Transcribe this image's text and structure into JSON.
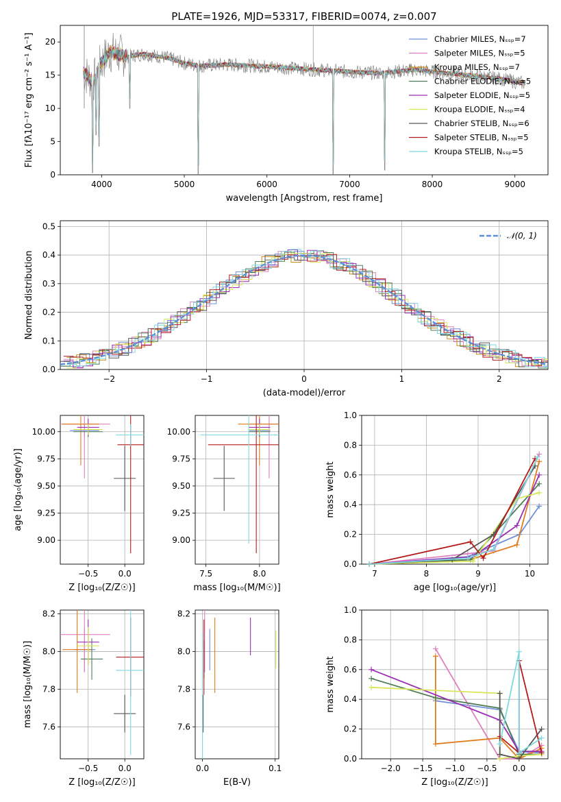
{
  "colors": {
    "grid": "#b0b0b0",
    "chabrier_miles": "#6f8fd8",
    "salpeter_miles": "#e07fbf",
    "kroupa_miles": "#c98a14",
    "chabrier_elodie": "#4e7d55",
    "salpeter_elodie": "#9b2fb3",
    "kroupa_elodie": "#d8e65a",
    "chabrier_stelib": "#555555",
    "salpeter_stelib": "#b31a1a",
    "kroupa_stelib": "#7fd8e0",
    "orange": "#e07b1a",
    "normal_curve": "#5b8fd9"
  },
  "chart_data": [
    {
      "id": "spectrum",
      "type": "line",
      "title": "PLATE=1926, MJD=53317, FIBERID=0074, z=0.007",
      "xlabel": "wavelength [Angstrom, rest frame]",
      "ylabel": "Flux [fλ10⁻¹⁷ erg cm⁻² s⁻¹ A⁻¹]",
      "xlim": [
        3500,
        9400
      ],
      "ylim": [
        0,
        22.5
      ],
      "xticks": [
        "4000",
        "5000",
        "6000",
        "7000",
        "8000",
        "9000"
      ],
      "yticks": [
        "0",
        "5",
        "10",
        "15",
        "20"
      ],
      "grid": false,
      "legend_position": "top-right",
      "legend": [
        "Chabrier MILES, Nₛₛₚ=7",
        "Salpeter MILES, Nₛₛₚ=5",
        "Kroupa MILES, Nₛₛₚ=7",
        "Chabrier ELODIE, Nₛₛₚ=5",
        "Salpeter ELODIE, Nₛₛₚ=5",
        "Kroupa ELODIE, Nₛₛₚ=4",
        "Chabrier STELIB, Nₛₛₚ=6",
        "Salpeter STELIB, Nₛₛₚ=5",
        "Kroupa STELIB, Nₛₛₚ=5"
      ],
      "continuum": [
        [
          3780,
          15.5
        ],
        [
          3900,
          14
        ],
        [
          4000,
          17
        ],
        [
          4100,
          18.5
        ],
        [
          4300,
          17.8
        ],
        [
          4500,
          18.2
        ],
        [
          4800,
          17.6
        ],
        [
          5000,
          16.8
        ],
        [
          5200,
          16.4
        ],
        [
          5500,
          16.6
        ],
        [
          6000,
          16.3
        ],
        [
          6500,
          15.9
        ],
        [
          7000,
          15.5
        ],
        [
          7400,
          15.3
        ],
        [
          7600,
          15.6
        ],
        [
          7800,
          15.8
        ],
        [
          8100,
          15.4
        ],
        [
          8500,
          14.9
        ],
        [
          8800,
          14.5
        ],
        [
          9100,
          13.8
        ]
      ],
      "dips": [
        [
          3890,
          0.3
        ],
        [
          3935,
          6.0
        ],
        [
          3970,
          4.3
        ],
        [
          4340,
          10
        ],
        [
          5170,
          0
        ],
        [
          6800,
          0
        ],
        [
          7425,
          0.7
        ]
      ]
    },
    {
      "id": "residuals",
      "type": "line",
      "xlabel": "(data-model)/error",
      "ylabel": "Normed distribution",
      "xlim": [
        -2.5,
        2.5
      ],
      "ylim": [
        0,
        0.52
      ],
      "xticks": [
        "−2",
        "−1",
        "0",
        "1",
        "2"
      ],
      "yticks": [
        "0.0",
        "0.1",
        "0.2",
        "0.3",
        "0.4",
        "0.5"
      ],
      "grid": true,
      "legend_position": "top-right",
      "legend": [
        "𝒩(0, 1)"
      ],
      "series": [
        {
          "name": "𝒩(0, 1)",
          "function": "standard normal pdf"
        }
      ]
    },
    {
      "id": "age_vs_Z",
      "type": "scatter",
      "xlabel": "Z [log₁₀(Z/Z☉)]",
      "ylabel": "age  [log₁₀(age/yr)]",
      "xlim": [
        -0.88,
        0.26
      ],
      "ylim": [
        8.78,
        10.15
      ],
      "xticks": [
        "−0.5",
        "0.0"
      ],
      "yticks": [
        "9.00",
        "9.25",
        "9.50",
        "9.75",
        "10.00"
      ],
      "grid": true,
      "points": [
        {
          "x": -0.55,
          "y": 10.01,
          "xerr": 0.2,
          "yerr": 0.06,
          "color": "chabrier_miles"
        },
        {
          "x": -0.55,
          "y": 10.07,
          "xerr": 0.35,
          "yerr": 0.5,
          "color": "salpeter_miles"
        },
        {
          "x": -0.6,
          "y": 10.07,
          "xerr": 0.25,
          "yerr": 0.38,
          "color": "orange"
        },
        {
          "x": -0.5,
          "y": 10.0,
          "xerr": 0.2,
          "yerr": 0.05,
          "color": "chabrier_elodie"
        },
        {
          "x": -0.5,
          "y": 10.04,
          "xerr": 0.15,
          "yerr": 0.08,
          "color": "salpeter_elodie"
        },
        {
          "x": -0.5,
          "y": 10.02,
          "xerr": 0.2,
          "yerr": 0.05,
          "color": "kroupa_elodie"
        },
        {
          "x": 0.0,
          "y": 9.57,
          "xerr": 0.15,
          "yerr": 0.3,
          "color": "chabrier_stelib"
        },
        {
          "x": 0.08,
          "y": 9.88,
          "xerr": 0.18,
          "yerr": 1.0,
          "color": "salpeter_stelib"
        },
        {
          "x": 0.08,
          "y": 9.97,
          "xerr": 0.2,
          "yerr": 0.1,
          "color": "kroupa_stelib"
        }
      ]
    },
    {
      "id": "age_vs_mass",
      "type": "scatter",
      "xlabel": "mass [log₁₀(M/M☉)]",
      "ylabel": "",
      "xlim": [
        7.4,
        8.18
      ],
      "ylim": [
        8.78,
        10.15
      ],
      "xticks": [
        "7.5",
        "8.0"
      ],
      "yticks": [
        "9.00",
        "9.25",
        "9.50",
        "9.75",
        "10.00"
      ],
      "grid": true,
      "points": [
        {
          "x": 8.0,
          "y": 10.01,
          "xerr": 0.1,
          "yerr": 0.06,
          "color": "chabrier_miles"
        },
        {
          "x": 8.09,
          "y": 10.07,
          "xerr": 0.2,
          "yerr": 0.5,
          "color": "salpeter_miles"
        },
        {
          "x": 8.0,
          "y": 10.07,
          "xerr": 0.2,
          "yerr": 0.38,
          "color": "orange"
        },
        {
          "x": 8.0,
          "y": 10.0,
          "xerr": 0.1,
          "yerr": 0.05,
          "color": "chabrier_elodie"
        },
        {
          "x": 8.0,
          "y": 10.04,
          "xerr": 0.1,
          "yerr": 0.08,
          "color": "salpeter_elodie"
        },
        {
          "x": 8.0,
          "y": 10.02,
          "xerr": 0.1,
          "yerr": 0.05,
          "color": "kroupa_elodie"
        },
        {
          "x": 7.67,
          "y": 9.57,
          "xerr": 0.1,
          "yerr": 0.3,
          "color": "chabrier_stelib"
        },
        {
          "x": 7.97,
          "y": 9.88,
          "xerr": 0.45,
          "yerr": 1.0,
          "color": "salpeter_stelib"
        },
        {
          "x": 7.9,
          "y": 9.97,
          "xerr": 0.45,
          "yerr": 1.0,
          "color": "kroupa_stelib"
        }
      ]
    },
    {
      "id": "weight_vs_age",
      "type": "line",
      "xlabel": "age  [log₁₀(age/yr)]",
      "ylabel": "mass weight",
      "xlim": [
        6.75,
        10.35
      ],
      "ylim": [
        0,
        1.0
      ],
      "xticks": [
        "7",
        "8",
        "9",
        "10"
      ],
      "yticks": [
        "0.0",
        "0.2",
        "0.4",
        "0.6",
        "0.8",
        "1.0"
      ],
      "grid": true,
      "series": [
        {
          "color": "chabrier_miles",
          "x": [
            6.9,
            8.8,
            9.8,
            10.18
          ],
          "y": [
            0.0,
            0.05,
            0.2,
            0.39
          ]
        },
        {
          "color": "salpeter_miles",
          "x": [
            6.9,
            8.8,
            9.3,
            10.18
          ],
          "y": [
            0.0,
            0.07,
            0.09,
            0.74
          ]
        },
        {
          "color": "orange",
          "x": [
            6.9,
            8.85,
            9.75,
            10.18
          ],
          "y": [
            0.0,
            0.03,
            0.13,
            0.69
          ]
        },
        {
          "color": "chabrier_elodie",
          "x": [
            6.9,
            8.85,
            9.3,
            10.18
          ],
          "y": [
            0.0,
            0.03,
            0.2,
            0.54
          ]
        },
        {
          "color": "salpeter_elodie",
          "x": [
            6.9,
            8.9,
            9.75,
            10.18
          ],
          "y": [
            0.0,
            0.05,
            0.26,
            0.6
          ]
        },
        {
          "color": "kroupa_elodie",
          "x": [
            6.9,
            8.9,
            9.75,
            10.18
          ],
          "y": [
            0.0,
            0.02,
            0.44,
            0.48
          ]
        },
        {
          "color": "chabrier_stelib",
          "x": [
            6.9,
            8.5,
            9.3,
            10.1
          ],
          "y": [
            0.0,
            0.03,
            0.2,
            0.66
          ]
        },
        {
          "color": "salpeter_stelib",
          "x": [
            6.9,
            8.85,
            9.1,
            10.1
          ],
          "y": [
            0.0,
            0.15,
            0.04,
            0.71
          ]
        },
        {
          "color": "kroupa_stelib",
          "x": [
            6.9,
            8.8,
            9.3,
            10.15
          ],
          "y": [
            0.0,
            0.04,
            0.1,
            0.72
          ]
        }
      ]
    },
    {
      "id": "mass_vs_Z",
      "type": "scatter",
      "xlabel": "Z [log₁₀(Z/Z☉)]",
      "ylabel": "mass [log₁₀(M/M☉)]",
      "xlim": [
        -0.88,
        0.26
      ],
      "ylim": [
        7.43,
        8.22
      ],
      "xticks": [
        "−0.5",
        "0.0"
      ],
      "yticks": [
        "7.6",
        "7.8",
        "8.0",
        "8.2"
      ],
      "grid": true,
      "points": [
        {
          "x": -0.55,
          "y": 8.01,
          "xerr": 0.15,
          "yerr": 0.12,
          "color": "chabrier_miles"
        },
        {
          "x": -0.55,
          "y": 8.09,
          "xerr": 0.35,
          "yerr": 0.2,
          "color": "salpeter_miles"
        },
        {
          "x": -0.65,
          "y": 8.01,
          "xerr": 0.2,
          "yerr": 0.23,
          "color": "orange"
        },
        {
          "x": -0.45,
          "y": 7.96,
          "xerr": 0.15,
          "yerr": 0.11,
          "color": "chabrier_elodie"
        },
        {
          "x": -0.5,
          "y": 8.05,
          "xerr": 0.15,
          "yerr": 0.12,
          "color": "salpeter_elodie"
        },
        {
          "x": -0.5,
          "y": 8.03,
          "xerr": 0.15,
          "yerr": 0.1,
          "color": "kroupa_elodie"
        },
        {
          "x": 0.0,
          "y": 7.67,
          "xerr": 0.15,
          "yerr": 0.1,
          "color": "chabrier_stelib"
        },
        {
          "x": 0.08,
          "y": 7.97,
          "xerr": 0.2,
          "yerr": 0.21,
          "color": "salpeter_stelib"
        },
        {
          "x": 0.08,
          "y": 7.9,
          "xerr": 0.2,
          "yerr": 0.45,
          "color": "kroupa_stelib"
        }
      ]
    },
    {
      "id": "mass_vs_ebv",
      "type": "scatter",
      "xlabel": "E(B-V)",
      "ylabel": "",
      "xlim": [
        -0.01,
        0.105
      ],
      "ylim": [
        7.43,
        8.22
      ],
      "xticks": [
        "0.0",
        "0.1"
      ],
      "yticks": [
        "7.6",
        "7.8",
        "8.0",
        "8.2"
      ],
      "grid": true,
      "points": [
        {
          "x": 0.01,
          "y": 8.01,
          "yerr": 0.11,
          "color": "chabrier_miles"
        },
        {
          "x": 0.003,
          "y": 8.09,
          "yerr": 0.2,
          "color": "salpeter_miles"
        },
        {
          "x": 0.017,
          "y": 7.98,
          "yerr": 0.2,
          "color": "orange"
        },
        {
          "x": 0.002,
          "y": 7.96,
          "yerr": 0.1,
          "color": "chabrier_elodie"
        },
        {
          "x": 0.066,
          "y": 8.08,
          "yerr": 0.1,
          "color": "salpeter_elodie"
        },
        {
          "x": 0.101,
          "y": 8.01,
          "yerr": 0.1,
          "color": "kroupa_elodie"
        },
        {
          "x": 0.001,
          "y": 7.67,
          "yerr": 0.1,
          "color": "chabrier_stelib"
        },
        {
          "x": 0.002,
          "y": 7.97,
          "yerr": 0.2,
          "color": "salpeter_stelib"
        },
        {
          "x": 0.0,
          "y": 7.65,
          "yerr": 0.45,
          "color": "kroupa_stelib"
        }
      ]
    },
    {
      "id": "weight_vs_Z",
      "type": "line",
      "xlabel": "Z [log₁₀(Z/Z☉)]",
      "ylabel": "mass weight",
      "xlim": [
        -2.45,
        0.45
      ],
      "ylim": [
        0,
        1.0
      ],
      "xticks": [
        "−2.0",
        "−1.5",
        "−1.0",
        "−0.5",
        "0.0"
      ],
      "yticks": [
        "0.0",
        "0.2",
        "0.4",
        "0.6",
        "0.8",
        "1.0"
      ],
      "grid": true,
      "series": [
        {
          "color": "chabrier_miles",
          "x": [
            -1.3,
            -0.3,
            0.0,
            0.35
          ],
          "y": [
            0.39,
            0.33,
            0.05,
            0.04
          ]
        },
        {
          "color": "salpeter_miles",
          "x": [
            -1.3,
            -0.3,
            0.0,
            0.35
          ],
          "y": [
            0.74,
            0.0,
            0.0,
            0.09
          ]
        },
        {
          "color": "orange",
          "x": [
            -1.3,
            -1.3,
            -0.3,
            0.0,
            0.35
          ],
          "y": [
            0.69,
            0.1,
            0.14,
            0.0,
            0.07
          ]
        },
        {
          "color": "chabrier_elodie",
          "x": [
            -2.3,
            -1.3,
            -0.3,
            0.0,
            0.35
          ],
          "y": [
            0.54,
            0.41,
            0.34,
            0.03,
            0.03
          ]
        },
        {
          "color": "salpeter_elodie",
          "x": [
            -2.3,
            -0.3,
            0.0,
            0.35
          ],
          "y": [
            0.6,
            0.26,
            0.05,
            0.05
          ]
        },
        {
          "color": "kroupa_elodie",
          "x": [
            -2.3,
            -0.3,
            -0.3,
            0.0,
            0.35
          ],
          "y": [
            0.48,
            0.44,
            0.0,
            0.02,
            0.03
          ]
        },
        {
          "color": "chabrier_stelib",
          "x": [
            -0.3,
            -0.3,
            0.0,
            0.35
          ],
          "y": [
            0.44,
            0.03,
            0.0,
            0.2
          ]
        },
        {
          "color": "salpeter_stelib",
          "x": [
            -0.3,
            0.0,
            0.0,
            0.35
          ],
          "y": [
            0.15,
            0.04,
            0.66,
            0.04
          ]
        },
        {
          "color": "kroupa_stelib",
          "x": [
            -0.3,
            0.0,
            0.0,
            0.35
          ],
          "y": [
            0.1,
            0.72,
            0.04,
            0.14
          ]
        }
      ]
    }
  ]
}
